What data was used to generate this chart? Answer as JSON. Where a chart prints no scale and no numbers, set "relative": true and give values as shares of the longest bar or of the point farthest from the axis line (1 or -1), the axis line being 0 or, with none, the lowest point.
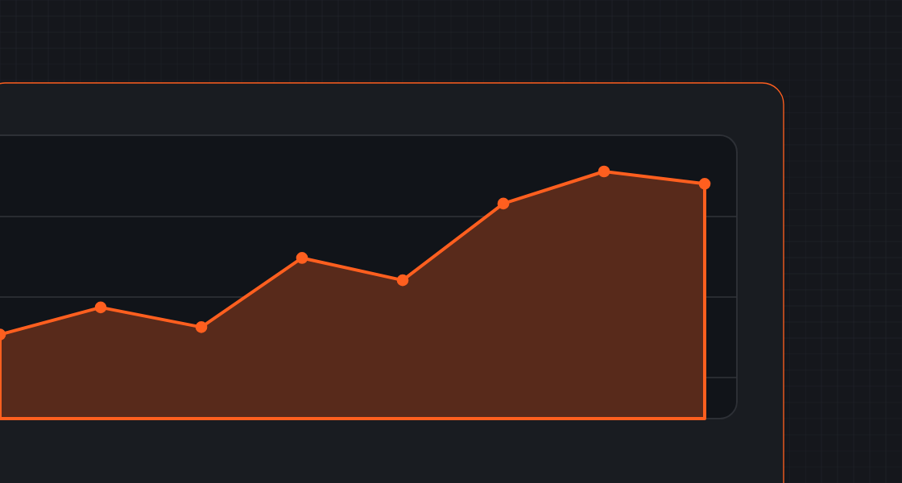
{
  "chart_data": {
    "type": "area",
    "relative": true,
    "categories": [
      null,
      null,
      null,
      null,
      null,
      null,
      null,
      null
    ],
    "values": [
      0.34,
      0.45,
      0.37,
      0.65,
      0.56,
      0.87,
      1,
      0.95
    ],
    "color": "#ff5f1f",
    "marker": "circle"
  }
}
